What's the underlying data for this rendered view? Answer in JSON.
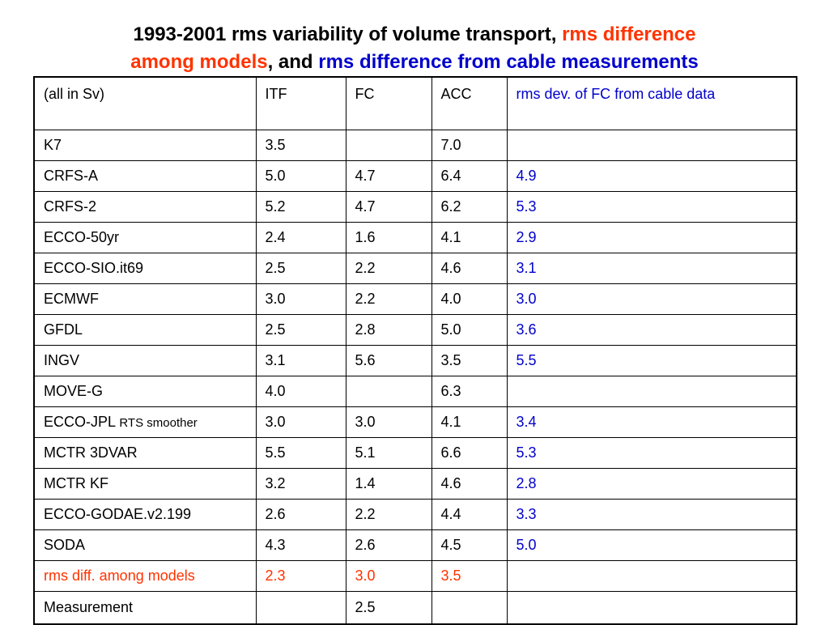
{
  "title": {
    "line1_black": "1993-2001 rms variability of volume transport, ",
    "line1_red": "rms difference",
    "line2_red": "among models",
    "line2_black": ", and ",
    "line2_blue": "rms difference from cable measurements"
  },
  "colors": {
    "red": "#ff3300",
    "blue": "#0000cc",
    "text": "#000000",
    "border": "#000000",
    "background": "#ffffff"
  },
  "table": {
    "header": {
      "c0": "(all in Sv)",
      "c1": "ITF",
      "c2": "FC",
      "c3": "ACC",
      "c4": "rms  dev. of FC from cable data"
    },
    "rows": [
      {
        "c0": "K7",
        "c1": "3.5",
        "c2": "",
        "c3": "7.0",
        "c4": ""
      },
      {
        "c0": "CRFS-A",
        "c1": "5.0",
        "c2": "4.7",
        "c3": "6.4",
        "c4": "4.9"
      },
      {
        "c0": "CRFS-2",
        "c1": "5.2",
        "c2": "4.7",
        "c3": "6.2",
        "c4": "5.3"
      },
      {
        "c0": "ECCO-50yr",
        "c1": "2.4",
        "c2": "1.6",
        "c3": "4.1",
        "c4": "2.9"
      },
      {
        "c0": "ECCO-SIO.it69",
        "c1": "2.5",
        "c2": "2.2",
        "c3": "4.6",
        "c4": "3.1"
      },
      {
        "c0": "ECMWF",
        "c1": "3.0",
        "c2": "2.2",
        "c3": "4.0",
        "c4": "3.0"
      },
      {
        "c0": "GFDL",
        "c1": "2.5",
        "c2": "2.8",
        "c3": "5.0",
        "c4": "3.6"
      },
      {
        "c0": "INGV",
        "c1": "3.1",
        "c2": "5.6",
        "c3": "3.5",
        "c4": "5.5"
      },
      {
        "c0": "MOVE-G",
        "c1": "4.0",
        "c2": "",
        "c3": "6.3",
        "c4": ""
      },
      {
        "c0": "ECCO-JPL",
        "c0_suffix": "RTS smoother",
        "c1": "3.0",
        "c2": "3.0",
        "c3": "4.1",
        "c4": "3.4"
      },
      {
        "c0": "MCTR 3DVAR",
        "c1": "5.5",
        "c2": "5.1",
        "c3": "6.6",
        "c4": "5.3"
      },
      {
        "c0": "MCTR KF",
        "c1": "3.2",
        "c2": "1.4",
        "c3": "4.6",
        "c4": "2.8"
      },
      {
        "c0": "ECCO-GODAE.v2.199",
        "c1": "2.6",
        "c2": "2.2",
        "c3": "4.4",
        "c4": "3.3"
      },
      {
        "c0": "SODA",
        "c1": "4.3",
        "c2": "2.6",
        "c3": "4.5",
        "c4": "5.0"
      },
      {
        "c0": "rms diff. among models",
        "c1": "2.3",
        "c2": "3.0",
        "c3": "3.5",
        "c4": ""
      },
      {
        "c0": "Measurement",
        "c1": "",
        "c2": "2.5",
        "c3": "",
        "c4": ""
      }
    ]
  }
}
